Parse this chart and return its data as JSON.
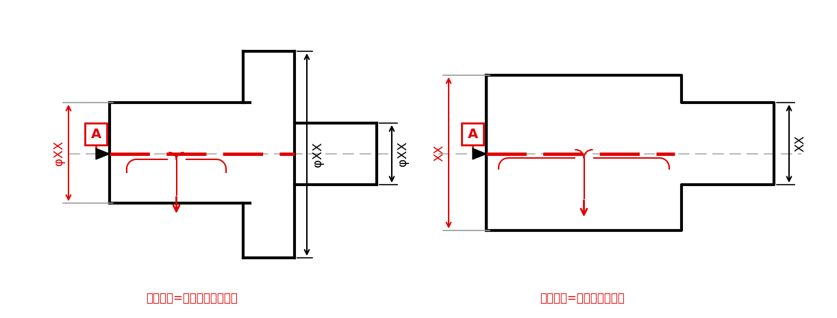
{
  "bg_color": "#ffffff",
  "line_color": "#000000",
  "red_color": "#e00000",
  "fig_width": 12.22,
  "fig_height": 4.65,
  "label1": "データム=左側円筒の中心線",
  "label2": "データム=左側の中心平面",
  "datum_letter": "A",
  "phi_xx": "φXX",
  "xx": "XX"
}
